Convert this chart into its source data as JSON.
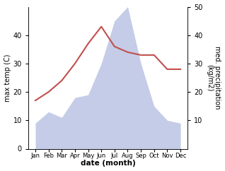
{
  "months": [
    "Jan",
    "Feb",
    "Mar",
    "Apr",
    "May",
    "Jun",
    "Jul",
    "Aug",
    "Sep",
    "Oct",
    "Nov",
    "Dec"
  ],
  "temperature": [
    17,
    20,
    24,
    30,
    37,
    43,
    36,
    34,
    33,
    33,
    28,
    28
  ],
  "precipitation": [
    9,
    13,
    11,
    18,
    19,
    30,
    45,
    50,
    30,
    15,
    10,
    9
  ],
  "temp_color": "#c0504d",
  "precip_color_fill": "#c5cce8",
  "ylabel_left": "max temp (C)",
  "ylabel_right": "med. precipitation\n(kg/m2)",
  "xlabel": "date (month)",
  "ylim": [
    0,
    50
  ],
  "yticks": [
    0,
    10,
    20,
    30,
    40
  ],
  "yticks_right": [
    10,
    20,
    30,
    40,
    50
  ],
  "background_color": "#ffffff"
}
